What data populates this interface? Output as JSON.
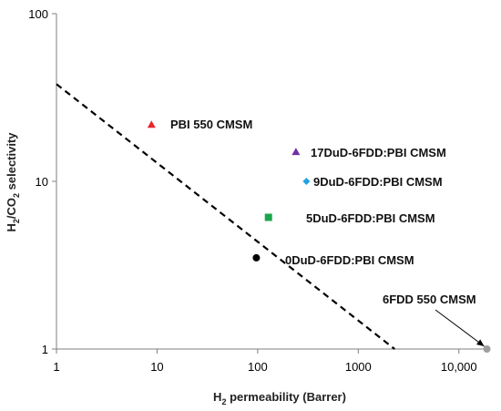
{
  "chart_data": {
    "type": "scatter",
    "title": "",
    "xlabel": "H2 permeability (Barrer)",
    "ylabel": "H2/CO2 selectivity",
    "xscale": "log",
    "yscale": "log",
    "xlim": [
      1,
      20000
    ],
    "ylim": [
      1,
      100
    ],
    "grid": false,
    "x_ticks": [
      {
        "value": 1,
        "label": "1"
      },
      {
        "value": 10,
        "label": "10"
      },
      {
        "value": 100,
        "label": "100"
      },
      {
        "value": 1000,
        "label": "1000"
      },
      {
        "value": 10000,
        "label": "10,000"
      }
    ],
    "y_ticks": [
      {
        "value": 1,
        "label": "1"
      },
      {
        "value": 10,
        "label": "10"
      },
      {
        "value": 100,
        "label": "100"
      }
    ],
    "points": [
      {
        "label": "PBI 550 CMSM",
        "x": 8.8,
        "y": 21.8,
        "marker": "triangle",
        "color": "#e8262b"
      },
      {
        "label": "17DuD-6FDD:PBI CMSM",
        "x": 240,
        "y": 15.0,
        "marker": "triangle",
        "color": "#7030a0"
      },
      {
        "label": "9DuD-6FDD:PBI CMSM",
        "x": 305,
        "y": 10.0,
        "marker": "diamond",
        "color": "#1fa3e0"
      },
      {
        "label": "5DuD-6FDD:PBI CMSM",
        "x": 128,
        "y": 6.1,
        "marker": "square",
        "color": "#19a64b"
      },
      {
        "label": "0DuD-6FDD:PBI CMSM",
        "x": 97,
        "y": 3.5,
        "marker": "circle",
        "color": "#000000"
      },
      {
        "label": "6FDD 550 CMSM",
        "x": 19000,
        "y": 1.0,
        "marker": "circle",
        "color": "#9e9e9e"
      }
    ],
    "upper_bound_line": {
      "style": "dashed",
      "color": "#000000",
      "x": [
        1,
        2300
      ],
      "y": [
        38,
        1
      ]
    }
  }
}
